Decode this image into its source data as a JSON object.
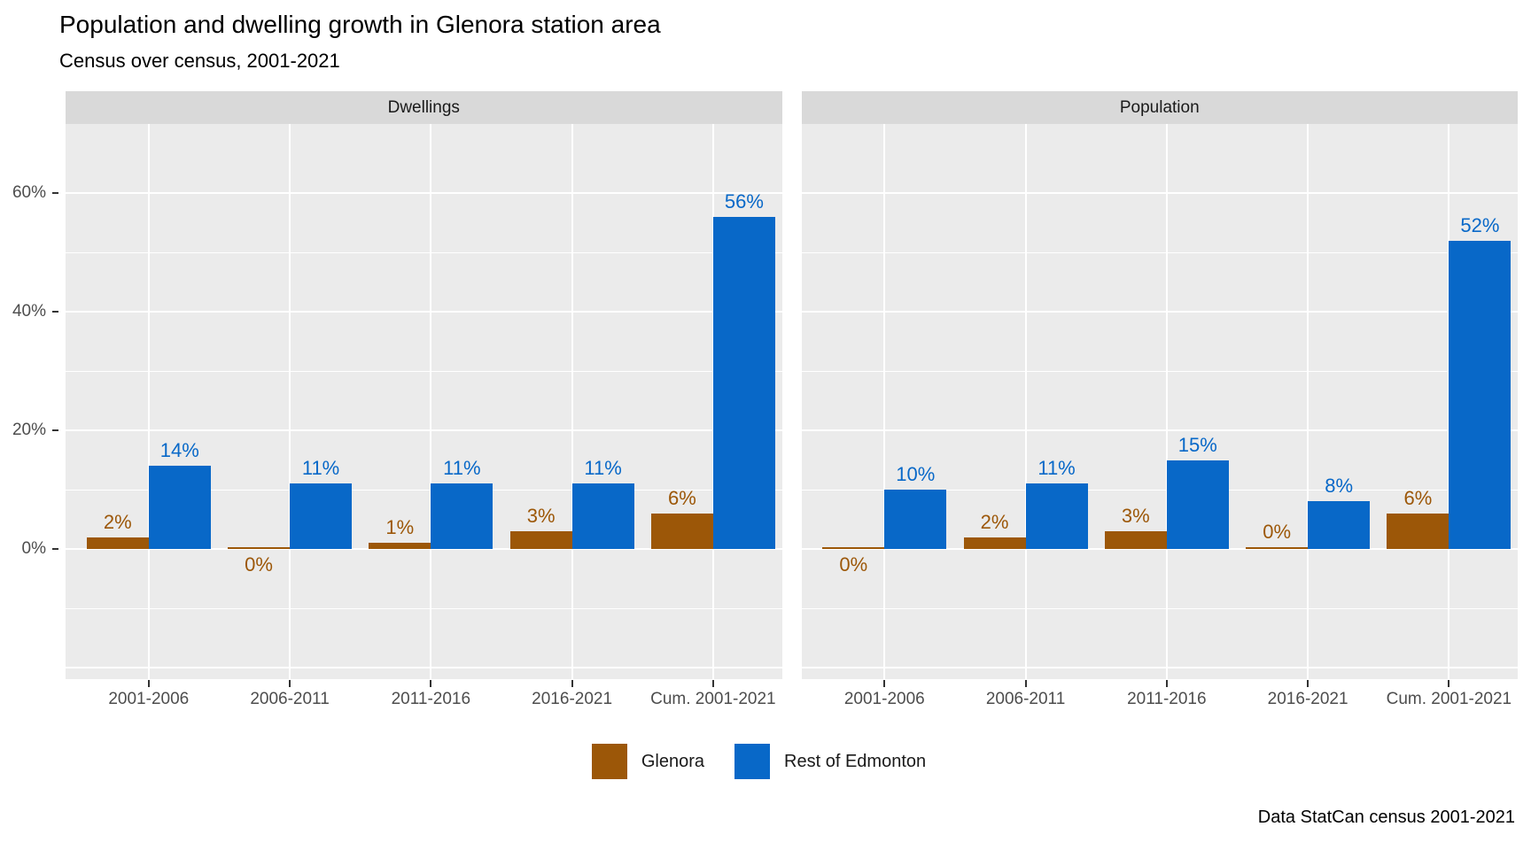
{
  "title": "Population and dwelling growth in Glenora station area",
  "subtitle": "Census over census, 2001-2021",
  "caption": "Data StatCan census 2001-2021",
  "colors": {
    "glenora": "#9c5708",
    "rest": "#0868c8",
    "panel_bg": "#ebebeb",
    "strip_bg": "#d9d9d9",
    "grid": "#ffffff",
    "axis_text": "#4d4d4d",
    "tick_mark": "#333333"
  },
  "legend": {
    "items": [
      {
        "label": "Glenora",
        "color_key": "glenora"
      },
      {
        "label": "Rest of Edmonton",
        "color_key": "rest"
      }
    ]
  },
  "y_axis": {
    "tick_labels": [
      "60%",
      "40%",
      "20%",
      "0%"
    ],
    "tick_values": [
      60,
      40,
      20,
      0
    ]
  },
  "chart_data": {
    "type": "bar",
    "categories": [
      "2001-2006",
      "2006-2011",
      "2011-2016",
      "2016-2021",
      "Cum. 2001-2021"
    ],
    "ylim": [
      -22,
      71
    ],
    "grid": {
      "major": [
        60,
        40,
        20,
        0,
        -20
      ],
      "minor": [
        50,
        30,
        10,
        -10
      ]
    },
    "legend_position": "bottom",
    "facets": [
      {
        "title": "Dwellings",
        "series": [
          {
            "name": "Glenora",
            "color_key": "glenora",
            "values": [
              2,
              0,
              1,
              3,
              6
            ],
            "labels": [
              "2%",
              "0%",
              "1%",
              "3%",
              "6%"
            ],
            "label_below_axis": [
              false,
              true,
              false,
              false,
              false
            ]
          },
          {
            "name": "Rest of Edmonton",
            "color_key": "rest",
            "values": [
              14,
              11,
              11,
              11,
              56
            ],
            "labels": [
              "14%",
              "11%",
              "11%",
              "11%",
              "56%"
            ],
            "label_below_axis": [
              false,
              false,
              false,
              false,
              false
            ]
          }
        ]
      },
      {
        "title": "Population",
        "series": [
          {
            "name": "Glenora",
            "color_key": "glenora",
            "values": [
              0,
              2,
              3,
              0,
              6
            ],
            "labels": [
              "0%",
              "2%",
              "3%",
              "0%",
              "6%"
            ],
            "label_below_axis": [
              true,
              false,
              false,
              false,
              false
            ]
          },
          {
            "name": "Rest of Edmonton",
            "color_key": "rest",
            "values": [
              10,
              11,
              15,
              8,
              52
            ],
            "labels": [
              "10%",
              "11%",
              "15%",
              "8%",
              "52%"
            ],
            "label_below_axis": [
              false,
              false,
              false,
              false,
              false
            ]
          }
        ]
      }
    ]
  }
}
